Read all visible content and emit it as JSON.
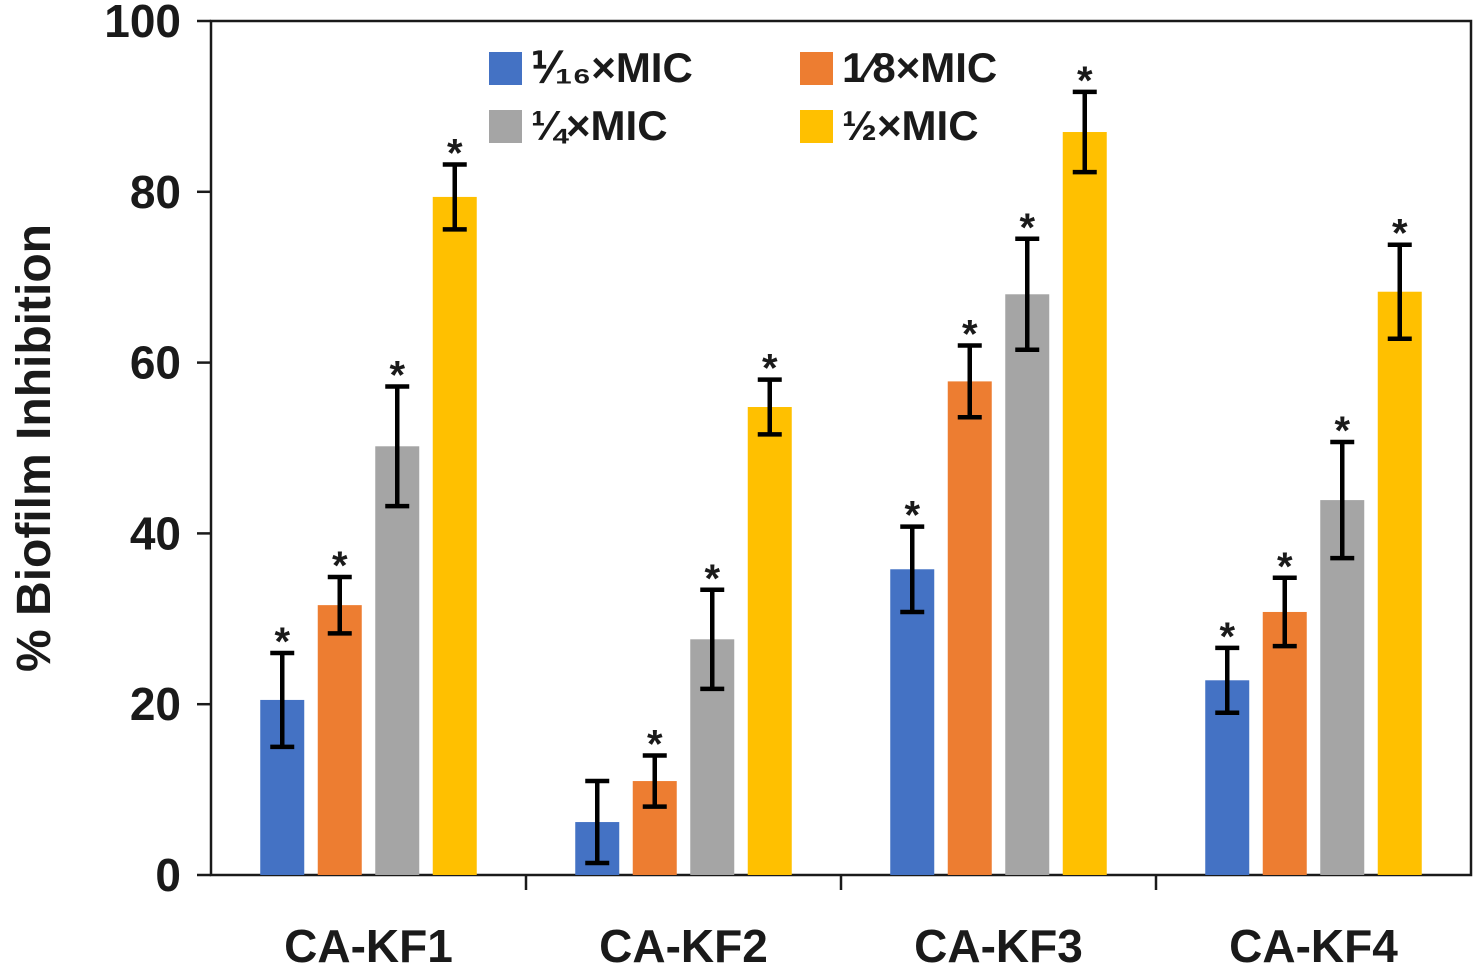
{
  "chart_data": {
    "type": "bar",
    "title": "",
    "xlabel": "",
    "ylabel": "% Biofilm Inhibition",
    "ylim": [
      0,
      100
    ],
    "yticks": [
      0,
      20,
      40,
      60,
      80,
      100
    ],
    "categories": [
      "CA-KF1",
      "CA-KF2",
      "CA-KF3",
      "CA-KF4"
    ],
    "legend_position": "top",
    "series": [
      {
        "name": "⅟₁₆×MIC",
        "color": "#4472C4",
        "values": [
          20.5,
          6.2,
          35.8,
          22.8
        ],
        "errors": [
          5.5,
          4.8,
          5.0,
          3.8
        ],
        "significant": [
          true,
          false,
          true,
          true
        ]
      },
      {
        "name": "1⁄8×MIC",
        "color": "#ED7D31",
        "values": [
          31.6,
          11.0,
          57.8,
          30.8
        ],
        "errors": [
          3.3,
          3.0,
          4.2,
          4.0
        ],
        "significant": [
          true,
          true,
          true,
          true
        ]
      },
      {
        "name": "¼×MIC",
        "color": "#A5A5A5",
        "values": [
          50.2,
          27.6,
          68.0,
          43.9
        ],
        "errors": [
          7.0,
          5.8,
          6.5,
          6.8
        ],
        "significant": [
          true,
          true,
          true,
          true
        ]
      },
      {
        "name": "½×MIC",
        "color": "#FFC000",
        "values": [
          79.4,
          54.8,
          87.0,
          68.3
        ],
        "errors": [
          3.8,
          3.2,
          4.7,
          5.5
        ],
        "significant": [
          true,
          true,
          true,
          true
        ]
      }
    ],
    "significance_marker": "*"
  }
}
